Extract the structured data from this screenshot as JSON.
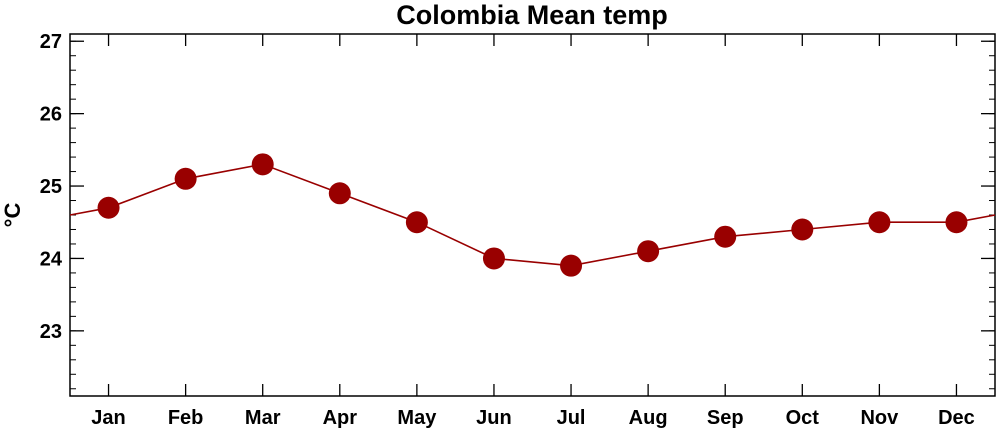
{
  "chart_data": {
    "type": "line",
    "title": "Colombia Mean temp",
    "xlabel": "",
    "ylabel": "°C",
    "categories": [
      "Jan",
      "Feb",
      "Mar",
      "Apr",
      "May",
      "Jun",
      "Jul",
      "Aug",
      "Sep",
      "Oct",
      "Nov",
      "Dec"
    ],
    "series": [
      {
        "values": [
          24.7,
          25.1,
          25.3,
          24.9,
          24.5,
          24.0,
          23.9,
          24.1,
          24.3,
          24.4,
          24.5,
          24.5
        ]
      }
    ],
    "wrap_values": {
      "left": 24.6,
      "right": 24.6
    },
    "ylim": [
      22.1,
      27.1
    ],
    "yticks": [
      23,
      24,
      25,
      26,
      27
    ],
    "y_minor_step": 0.2,
    "grid": false,
    "legend": "none",
    "colors": {
      "line": "#990000",
      "marker": "#990000",
      "axis": "#000000"
    }
  }
}
